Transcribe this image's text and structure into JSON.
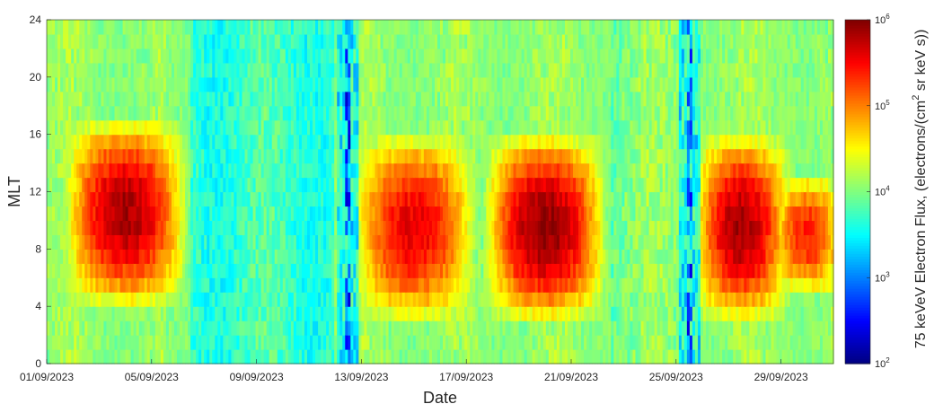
{
  "chart_data": {
    "type": "heatmap",
    "title": "",
    "xlabel": "Date",
    "ylabel": "MLT",
    "x_range": [
      "01/09/2023",
      "30/09/2023"
    ],
    "ylim": [
      0,
      24
    ],
    "x_tick_labels": [
      "01/09/2023",
      "05/09/2023",
      "09/09/2023",
      "13/09/2023",
      "17/09/2023",
      "21/09/2023",
      "25/09/2023",
      "29/09/2023"
    ],
    "y_tick_labels": [
      "0",
      "4",
      "8",
      "12",
      "16",
      "20",
      "24"
    ],
    "y_ticks": [
      0,
      4,
      8,
      12,
      16,
      20,
      24
    ],
    "colorbar": {
      "label": "75 keVeV Electron Flux, (electrons/(cm",
      "label_sup": "2",
      "label_tail": " sr keV s))",
      "scale": "log",
      "range": [
        100,
        1000000
      ],
      "tick_base": "10",
      "tick_exponents": [
        "2",
        "3",
        "4",
        "5",
        "6"
      ],
      "colormap": "jet"
    },
    "mlt_bins": 24,
    "flux_features": {
      "background_log10_flux": 4.0,
      "enhancements": [
        {
          "start": "02/09/2023",
          "end": "05/09/2023",
          "mlt_range": [
            5,
            16
          ],
          "peak_log10_flux": 5.55
        },
        {
          "start": "13/09/2023",
          "end": "16/09/2023",
          "mlt_range": [
            4,
            15
          ],
          "peak_log10_flux": 5.3
        },
        {
          "start": "18/09/2023",
          "end": "21/09/2023",
          "mlt_range": [
            4,
            15
          ],
          "peak_log10_flux": 5.65
        },
        {
          "start": "26/09/2023",
          "end": "28/09/2023",
          "mlt_range": [
            4,
            15
          ],
          "peak_log10_flux": 5.55
        },
        {
          "start": "29/09/2023",
          "end": "30/09/2023",
          "mlt_range": [
            6,
            12
          ],
          "peak_log10_flux": 5.1
        }
      ],
      "dropouts": [
        {
          "date": "12/09/2023",
          "mlt_range": [
            0,
            24
          ],
          "min_log10_flux": 2.3
        },
        {
          "date": "25/09/2023",
          "mlt_range": [
            0,
            24
          ],
          "min_log10_flux": 2.4
        }
      ]
    }
  }
}
